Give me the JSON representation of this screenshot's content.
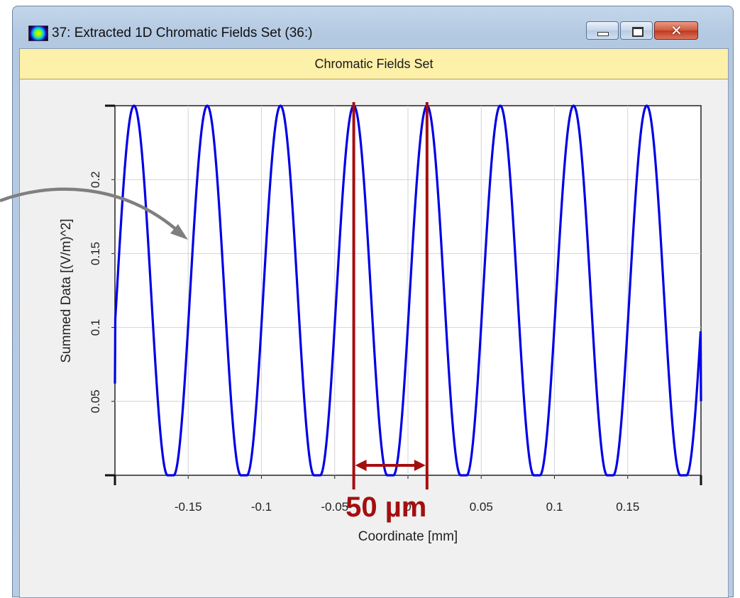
{
  "window": {
    "title": "37: Extracted 1D Chromatic Fields Set (36:)",
    "header": "Chromatic Fields Set",
    "icon": "field-spectrum-icon",
    "controls": [
      "minimize-icon",
      "maximize-icon",
      "close-icon"
    ]
  },
  "colors": {
    "curve": "#0000e6",
    "annotation": "#a50e0e",
    "arrow": "#7f7f7f",
    "header_bg": "#fdf0a8"
  },
  "annotation": {
    "text": "50 µm",
    "markers_x_mm": [
      -0.037,
      0.013
    ]
  },
  "chart_data": {
    "type": "line",
    "xlabel": "Coordinate [mm]",
    "ylabel": "Summed Data [(V/m)^2]",
    "xlim": [
      -0.2,
      0.2
    ],
    "ylim": [
      0,
      0.25
    ],
    "xticks": [
      -0.15,
      -0.1,
      -0.05,
      0,
      0.05,
      0.1,
      0.15
    ],
    "xtick_labels": [
      "-0.15",
      "-0.1",
      "-0.05",
      "0",
      "0.05",
      "0.1",
      "0.15"
    ],
    "yticks": [
      0.05,
      0.1,
      0.15,
      0.2
    ],
    "ytick_labels": [
      "0.05",
      "0.1",
      "0.15",
      "0.2"
    ],
    "grid": true,
    "series": [
      {
        "color": "#0000e6",
        "period_mm": 0.05,
        "peak_x_mm": [
          -0.187,
          -0.137,
          -0.087,
          -0.037,
          0.013,
          0.063,
          0.113,
          0.163
        ],
        "peak_value": 0.25,
        "min_value": 0,
        "x_start": -0.2,
        "y_start": 0.062,
        "x_end": 0.2,
        "y_end": 0.05
      }
    ]
  }
}
